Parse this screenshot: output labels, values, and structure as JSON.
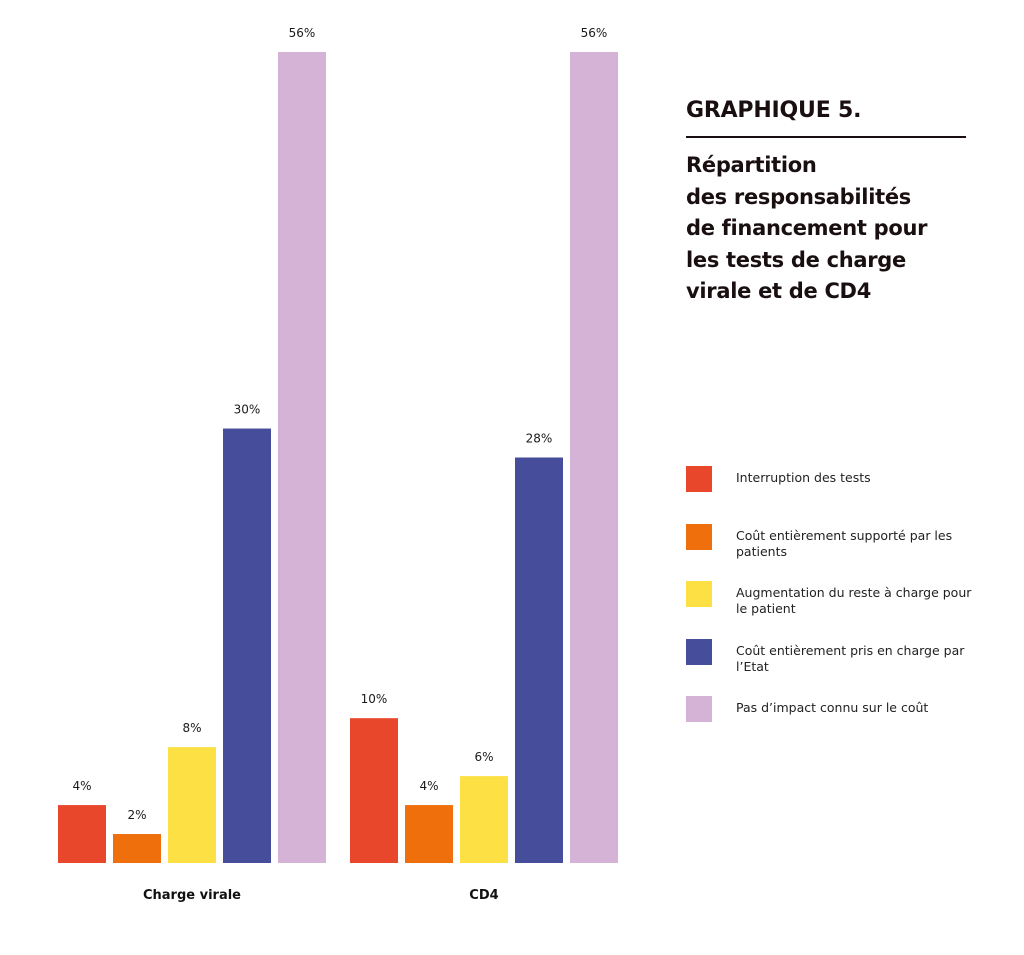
{
  "chart_data": {
    "type": "bar",
    "title": "GRAPHIQUE 5.",
    "subtitle": "Répartition\ndes responsabilités\nde financement pour\nles tests de charge\nvirale et de CD4",
    "categories": [
      "Charge virale",
      "CD4"
    ],
    "series": [
      {
        "name": "Interruption des tests",
        "color": "#e8472b",
        "values": [
          4,
          10
        ],
        "labels": [
          "4%",
          "10%"
        ]
      },
      {
        "name": "Coût entièrement supporté par les patients",
        "color": "#ee6f0b",
        "values": [
          2,
          4
        ],
        "labels": [
          "2%",
          "4%"
        ]
      },
      {
        "name": "Augmentation du reste à charge pour le patient",
        "color": "#fde044",
        "values": [
          8,
          6
        ],
        "labels": [
          "8%",
          "6%"
        ]
      },
      {
        "name": "Coût entièrement pris en charge par l’Etat",
        "color": "#464d9a",
        "values": [
          30,
          28
        ],
        "labels": [
          "30%",
          "28%"
        ]
      },
      {
        "name": "Pas d’impact connu sur le coût",
        "color": "#d5b3d7",
        "values": [
          56,
          56
        ],
        "labels": [
          "56%",
          "56%"
        ]
      }
    ],
    "ylim": [
      0,
      56
    ],
    "grid": false,
    "legend_position": "right"
  }
}
